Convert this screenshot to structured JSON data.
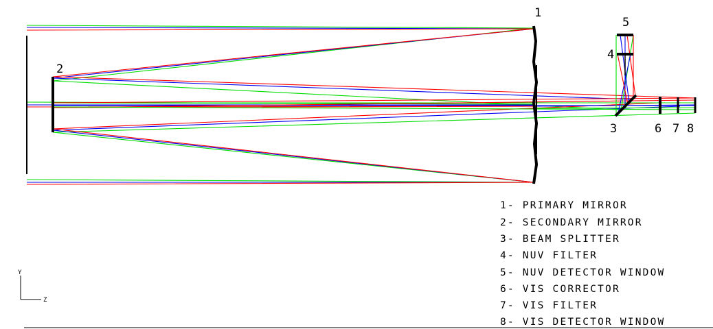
{
  "diagram": {
    "component_numbers": [
      "1",
      "2",
      "3",
      "4",
      "5",
      "6",
      "7",
      "8"
    ],
    "legend": [
      "1- PRIMARY MIRROR",
      "2- SECONDARY MIRROR",
      "3- BEAM SPLITTER",
      "4- NUV FILTER",
      "5- NUV DETECTOR WINDOW",
      "6- VIS CORRECTOR",
      "7- VIS FILTER",
      "8- VIS DETECTOR WINDOW"
    ],
    "axes": {
      "y": "Y",
      "z": "Z"
    },
    "ray_colors": [
      "#00dd00",
      "#0000ee",
      "#ff0000"
    ],
    "element_color": "#000000"
  }
}
